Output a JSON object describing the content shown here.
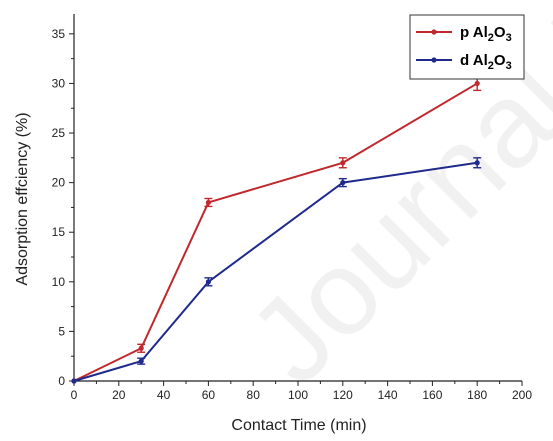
{
  "chart_data": {
    "type": "line",
    "xlabel": "Contact Time (min)",
    "ylabel": "Adsorption effciency (%)",
    "xlim": [
      0,
      200
    ],
    "ylim": [
      0,
      37
    ],
    "x_ticks": [
      0,
      20,
      40,
      60,
      80,
      100,
      120,
      140,
      160,
      180,
      200
    ],
    "y_ticks": [
      0,
      5,
      10,
      15,
      20,
      25,
      30,
      35
    ],
    "grid": false,
    "legend_position": "top-right",
    "series": [
      {
        "name": "p Al2O3",
        "label_main": "p Al",
        "label_sub1": "2",
        "label_mid": "O",
        "label_sub2": "3",
        "color": "#c0282d",
        "x": [
          0,
          30,
          60,
          120,
          180
        ],
        "y": [
          0,
          3.3,
          18,
          22,
          30
        ],
        "err": [
          0,
          0.4,
          0.4,
          0.5,
          0.7
        ]
      },
      {
        "name": "d Al2O3",
        "label_main": "d Al",
        "label_sub1": "2",
        "label_mid": "O",
        "label_sub2": "3",
        "color": "#1f2a8c",
        "x": [
          0,
          30,
          60,
          120,
          180
        ],
        "y": [
          0,
          2,
          10,
          20,
          22
        ],
        "err": [
          0,
          0.3,
          0.4,
          0.4,
          0.5
        ]
      }
    ],
    "watermark": "Journal Pre-proof"
  }
}
